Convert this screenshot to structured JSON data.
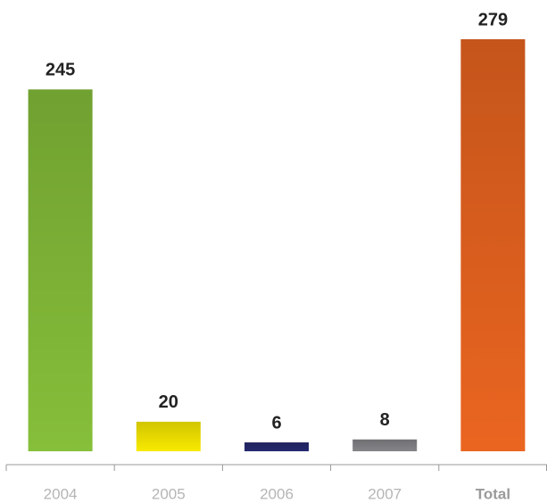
{
  "chart_data": {
    "type": "bar",
    "categories": [
      "2004",
      "2005",
      "2006",
      "2007",
      "Total"
    ],
    "values": [
      245,
      20,
      6,
      8,
      279
    ],
    "colors": [
      "#86bf3a",
      "#f9ea00",
      "#262a6e",
      "#858589",
      "#ea6520"
    ]
  }
}
